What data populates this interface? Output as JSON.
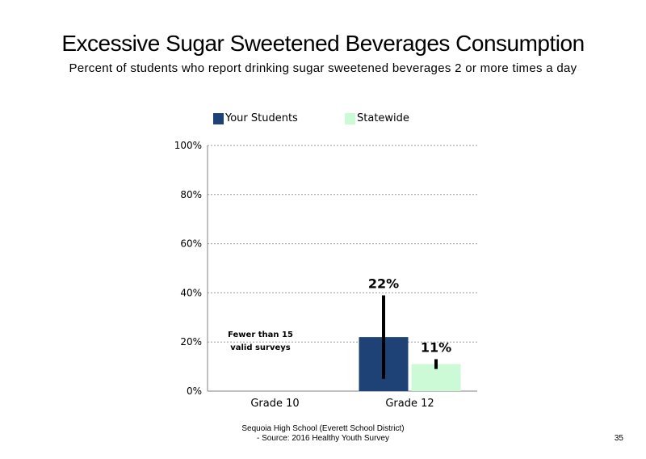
{
  "slide": {
    "title": "Excessive Sugar Sweetened Beverages Consumption",
    "subtitle": "Percent of students who report drinking sugar sweetened beverages 2 or more times a day",
    "footer_line1": "Sequoia High School (Everett School District)",
    "footer_line2": "- Source: 2016 Healthy Youth Survey",
    "page_number": "35"
  },
  "chart_data": {
    "type": "bar",
    "categories": [
      "Grade 10",
      "Grade 12"
    ],
    "series": [
      {
        "name": "Your Students",
        "color": "#1f4276",
        "values": [
          null,
          22
        ],
        "labels": [
          "",
          "22%"
        ],
        "error_low": [
          null,
          5
        ],
        "error_high": [
          null,
          39
        ]
      },
      {
        "name": "Statewide",
        "color": "#ccfad6",
        "values": [
          null,
          11
        ],
        "labels": [
          "",
          "11%"
        ],
        "error_low": [
          null,
          9
        ],
        "error_high": [
          null,
          13
        ]
      }
    ],
    "ylim": [
      0,
      100
    ],
    "yticks": [
      "0%",
      "20%",
      "40%",
      "60%",
      "80%",
      "100%"
    ],
    "ytick_values": [
      0,
      20,
      40,
      60,
      80,
      100
    ],
    "gridlines": true,
    "legend_position": "top",
    "annotations": [
      {
        "category": "Grade 10",
        "lines": [
          "Fewer than 15",
          "valid surveys"
        ]
      }
    ]
  }
}
